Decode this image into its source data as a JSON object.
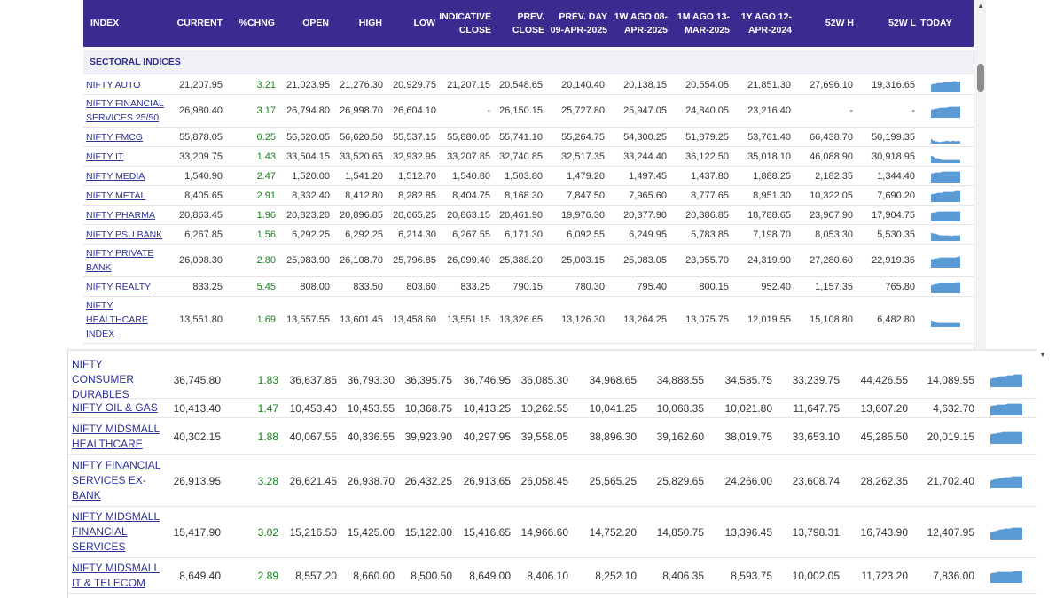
{
  "columns": [
    "INDEX",
    "CURRENT",
    "%CHNG",
    "OPEN",
    "HIGH",
    "LOW",
    "INDICATIVE CLOSE",
    "PREV. CLOSE",
    "PREV. DAY 09-APR-2025",
    "1W AGO 08-APR-2025",
    "1M AGO 13-MAR-2025",
    "1Y AGO 12-APR-2024",
    "52W H",
    "52W L",
    "TODAY"
  ],
  "section_label": "SECTORAL INDICES",
  "colors": {
    "header_bg": "#3b2a8f",
    "positive": "#17801c",
    "link": "#2d3393",
    "spark": "#5b9bd5"
  },
  "upper_rows": [
    {
      "name": "NIFTY AUTO",
      "values": [
        "21,207.95",
        "3.21",
        "21,023.95",
        "21,276.30",
        "20,929.75",
        "21,207.15",
        "20,548.65",
        "20,140.40",
        "20,138.15",
        "20,554.05",
        "21,851.30",
        "27,696.10",
        "19,316.65"
      ]
    },
    {
      "name": "NIFTY FINANCIAL SERVICES 25/50",
      "values": [
        "26,980.40",
        "3.17",
        "26,794.80",
        "26,998.70",
        "26,604.10",
        "-",
        "26,150.15",
        "25,727.80",
        "25,947.05",
        "24,840.05",
        "23,216.40",
        "-",
        "-"
      ]
    },
    {
      "name": "NIFTY FMCG",
      "values": [
        "55,878.05",
        "0.25",
        "56,620.05",
        "56,620.50",
        "55,537.15",
        "55,880.05",
        "55,741.10",
        "55,264.75",
        "54,300.25",
        "51,879.25",
        "53,701.40",
        "66,438.70",
        "50,199.35"
      ]
    },
    {
      "name": "NIFTY IT",
      "values": [
        "33,209.75",
        "1.43",
        "33,504.15",
        "33,520.65",
        "32,932.95",
        "33,207.85",
        "32,740.85",
        "32,517.35",
        "33,244.40",
        "36,122.50",
        "35,018.10",
        "46,088.90",
        "30,918.95"
      ]
    },
    {
      "name": "NIFTY MEDIA",
      "values": [
        "1,540.90",
        "2.47",
        "1,520.00",
        "1,541.20",
        "1,512.70",
        "1,540.80",
        "1,503.80",
        "1,479.20",
        "1,497.45",
        "1,437.80",
        "1,888.25",
        "2,182.35",
        "1,344.40"
      ]
    },
    {
      "name": "NIFTY METAL",
      "values": [
        "8,405.65",
        "2.91",
        "8,332.40",
        "8,412.80",
        "8,282.85",
        "8,404.75",
        "8,168.30",
        "7,847.50",
        "7,965.60",
        "8,777.65",
        "8,951.30",
        "10,322.05",
        "7,690.20"
      ]
    },
    {
      "name": "NIFTY PHARMA",
      "values": [
        "20,863.45",
        "1.96",
        "20,823.20",
        "20,896.85",
        "20,665.25",
        "20,863.15",
        "20,461.90",
        "19,976.30",
        "20,377.90",
        "20,386.85",
        "18,788.65",
        "23,907.90",
        "17,904.75"
      ]
    },
    {
      "name": "NIFTY PSU BANK",
      "values": [
        "6,267.85",
        "1.56",
        "6,292.25",
        "6,292.25",
        "6,214.30",
        "6,267.55",
        "6,171.30",
        "6,092.55",
        "6,249.95",
        "5,783.85",
        "7,198.70",
        "8,053.30",
        "5,530.35"
      ]
    },
    {
      "name": "NIFTY PRIVATE BANK",
      "values": [
        "26,098.30",
        "2.80",
        "25,983.90",
        "26,108.70",
        "25,796.85",
        "26,099.40",
        "25,388.20",
        "25,003.15",
        "25,083.05",
        "23,955.70",
        "24,319.90",
        "27,280.60",
        "22,919.35"
      ]
    },
    {
      "name": "NIFTY REALTY",
      "values": [
        "833.25",
        "5.45",
        "808.00",
        "833.50",
        "803.60",
        "833.25",
        "790.15",
        "780.30",
        "795.40",
        "800.15",
        "952.40",
        "1,157.35",
        "765.80"
      ]
    },
    {
      "name": "NIFTY HEALTHCARE INDEX",
      "values": [
        "13,551.80",
        "1.69",
        "13,557.55",
        "13,601.45",
        "13,458.60",
        "13,551.15",
        "13,326.65",
        "13,126.30",
        "13,264.25",
        "13,075.75",
        "12,019.55",
        "15,108.80",
        "6,482.80"
      ]
    }
  ],
  "lower_rows": [
    {
      "name": "NIFTY CONSUMER DURABLES",
      "values": [
        "36,745.80",
        "1.83",
        "36,637.85",
        "36,793.30",
        "36,395.75",
        "36,746.95",
        "36,085.30",
        "34,968.65",
        "34,888.55",
        "34,585.75",
        "33,239.75",
        "44,426.55",
        "14,089.55"
      ]
    },
    {
      "name": "NIFTY OIL & GAS",
      "values": [
        "10,413.40",
        "1.47",
        "10,453.40",
        "10,453.55",
        "10,368.75",
        "10,413.25",
        "10,262.55",
        "10,041.25",
        "10,068.35",
        "10,021.80",
        "11,647.75",
        "13,607.20",
        "4,632.70"
      ]
    },
    {
      "name": "NIFTY MIDSMALL HEALTHCARE",
      "values": [
        "40,302.15",
        "1.88",
        "40,067.55",
        "40,336.55",
        "39,923.90",
        "40,297.95",
        "39,558.05",
        "38,896.30",
        "39,162.60",
        "38,019.75",
        "33,653.10",
        "45,285.50",
        "20,019.15"
      ]
    },
    {
      "name": "NIFTY FINANCIAL SERVICES EX-BANK",
      "values": [
        "26,913.95",
        "3.28",
        "26,621.45",
        "26,938.70",
        "26,432.25",
        "26,913.65",
        "26,058.45",
        "25,565.25",
        "25,829.65",
        "24,266.00",
        "23,608.74",
        "28,262.35",
        "21,702.40"
      ]
    },
    {
      "name": "NIFTY MIDSMALL FINANCIAL SERVICES",
      "values": [
        "15,417.90",
        "3.02",
        "15,216.50",
        "15,425.00",
        "15,122.80",
        "15,416.65",
        "14,966.60",
        "14,752.20",
        "14,850.75",
        "13,396.45",
        "13,798.31",
        "16,743.90",
        "12,407.95"
      ]
    },
    {
      "name": "NIFTY MIDSMALL IT & TELECOM",
      "values": [
        "8,649.40",
        "2.89",
        "8,557.20",
        "8,660.00",
        "8,500.50",
        "8,649.00",
        "8,406.10",
        "8,252.10",
        "8,406.35",
        "8,593.75",
        "10,002.05",
        "11,723.20",
        "7,836.00"
      ]
    }
  ]
}
